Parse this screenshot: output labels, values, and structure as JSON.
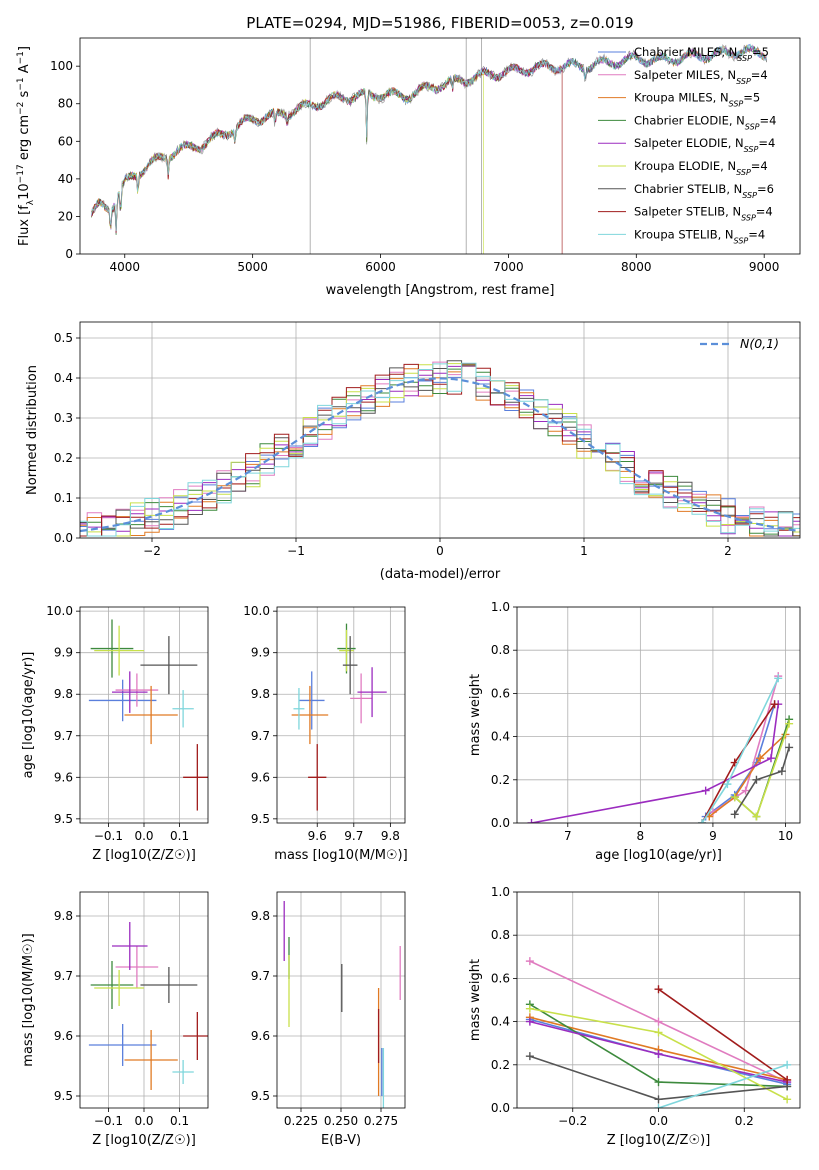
{
  "figure": {
    "title": "PLATE=0294, MJD=51986, FIBERID=0053, z=0.019"
  },
  "colors": {
    "Chabrier MILES": "#5a7fdc",
    "Salpeter MILES": "#e07cc0",
    "Kroupa MILES": "#e07a24",
    "Chabrier ELODIE": "#3d8a3d",
    "Salpeter ELODIE": "#9b2cbf",
    "Kroupa ELODIE": "#c8e04a",
    "Chabrier STELIB": "#555555",
    "Salpeter STELIB": "#a11c1c",
    "Kroupa STELIB": "#7fd6dc"
  },
  "chart_data": [
    {
      "id": "spectrum",
      "type": "line",
      "title": "PLATE=0294, MJD=51986, FIBERID=0053, z=0.019",
      "xlabel": "wavelength [Angstrom, rest frame]",
      "ylabel": "Flux [f_λ 10^-17 erg cm^-2 s^-1 A^-1]",
      "xlim": [
        3650,
        9280
      ],
      "ylim": [
        0,
        115
      ],
      "xticks": [
        4000,
        5000,
        6000,
        7000,
        8000,
        9000
      ],
      "yticks": [
        0,
        20,
        40,
        60,
        80,
        100
      ],
      "legend": "top-right",
      "legend_labels": [
        "Chabrier MILES, N_SSP=5",
        "Salpeter MILES, N_SSP=4",
        "Kroupa MILES, N_SSP=5",
        "Chabrier ELODIE, N_SSP=4",
        "Salpeter ELODIE, N_SSP=4",
        "Kroupa ELODIE, N_SSP=4",
        "Chabrier STELIB, N_SSP=6",
        "Salpeter STELIB, N_SSP=4",
        "Kroupa STELIB, N_SSP=4"
      ],
      "continuum": {
        "x": [
          3740,
          3800,
          3900,
          4000,
          4200,
          4400,
          4600,
          4800,
          5000,
          5200,
          5400,
          5600,
          5800,
          6000,
          6200,
          6400,
          6600,
          6800,
          7000,
          7200,
          7400,
          7600,
          7800,
          8000,
          8200,
          8400,
          8600,
          8800,
          9000,
          9020
        ],
        "y": [
          20,
          26,
          25,
          38,
          48,
          55,
          58,
          65,
          72,
          74,
          78,
          82,
          84,
          85,
          84,
          89,
          92,
          95,
          97,
          99,
          100,
          100,
          102,
          104,
          103,
          105,
          106,
          108,
          107,
          106
        ]
      },
      "grey_spikes_x": [
        5450,
        6670,
        6790
      ],
      "model_endpoints": [
        {
          "model": "Kroupa ELODIE",
          "end_x": 6800
        },
        {
          "model": "Salpeter STELIB",
          "end_x": 7420
        }
      ]
    },
    {
      "id": "residuals",
      "type": "line",
      "xlabel": "(data-model)/error",
      "ylabel": "Normed distribution",
      "xlim": [
        -2.5,
        2.5
      ],
      "ylim": [
        0,
        0.54
      ],
      "xticks": [
        -2,
        -1,
        0,
        1,
        2
      ],
      "yticks": [
        0.0,
        0.1,
        0.2,
        0.3,
        0.4,
        0.5
      ],
      "legend": "top-right",
      "gaussian_label": "N(0,1)"
    },
    {
      "id": "age_vs_Z",
      "type": "scatter",
      "xlabel": "Z [log10(Z/Z☉)]",
      "ylabel": "age  [log10(age/yr)]",
      "xlim": [
        -0.18,
        0.18
      ],
      "ylim": [
        9.49,
        10.01
      ],
      "xticks": [
        -0.1,
        0.0,
        0.1
      ],
      "yticks": [
        9.5,
        9.6,
        9.7,
        9.8,
        9.9,
        10.0
      ],
      "points": [
        {
          "model": "Chabrier MILES",
          "x": -0.06,
          "y": 9.785,
          "xerr": 0.095,
          "yerr": 0.05
        },
        {
          "model": "Salpeter MILES",
          "x": -0.02,
          "y": 9.81,
          "xerr": 0.06,
          "yerr": 0.04
        },
        {
          "model": "Kroupa MILES",
          "x": 0.02,
          "y": 9.75,
          "xerr": 0.075,
          "yerr": 0.07
        },
        {
          "model": "Chabrier ELODIE",
          "x": -0.09,
          "y": 9.91,
          "xerr": 0.06,
          "yerr": 0.07
        },
        {
          "model": "Salpeter ELODIE",
          "x": -0.04,
          "y": 9.805,
          "xerr": 0.05,
          "yerr": 0.05
        },
        {
          "model": "Kroupa ELODIE",
          "x": -0.07,
          "y": 9.905,
          "xerr": 0.07,
          "yerr": 0.06
        },
        {
          "model": "Chabrier STELIB",
          "x": 0.07,
          "y": 9.87,
          "xerr": 0.08,
          "yerr": 0.07
        },
        {
          "model": "Salpeter STELIB",
          "x": 0.15,
          "y": 9.6,
          "xerr": 0.04,
          "yerr": 0.08
        },
        {
          "model": "Kroupa STELIB",
          "x": 0.11,
          "y": 9.765,
          "xerr": 0.03,
          "yerr": 0.045
        }
      ]
    },
    {
      "id": "age_vs_mass",
      "type": "scatter",
      "xlabel": "mass [log10(M/M☉)]",
      "ylabel": "",
      "xlim": [
        9.49,
        9.84
      ],
      "ylim": [
        9.49,
        10.01
      ],
      "xticks": [
        9.6,
        9.7,
        9.8
      ],
      "yticks": [
        9.5,
        9.6,
        9.7,
        9.8,
        9.9,
        10.0
      ],
      "points": [
        {
          "model": "Chabrier MILES",
          "x": 9.585,
          "y": 9.785,
          "xerr": 0.035,
          "yerr": 0.07
        },
        {
          "model": "Salpeter MILES",
          "x": 9.72,
          "y": 9.79,
          "xerr": 0.03,
          "yerr": 0.06
        },
        {
          "model": "Kroupa MILES",
          "x": 9.58,
          "y": 9.75,
          "xerr": 0.05,
          "yerr": 0.07
        },
        {
          "model": "Chabrier ELODIE",
          "x": 9.68,
          "y": 9.91,
          "xerr": 0.025,
          "yerr": 0.06
        },
        {
          "model": "Salpeter ELODIE",
          "x": 9.75,
          "y": 9.805,
          "xerr": 0.04,
          "yerr": 0.06
        },
        {
          "model": "Kroupa ELODIE",
          "x": 9.68,
          "y": 9.905,
          "xerr": 0.02,
          "yerr": 0.05
        },
        {
          "model": "Chabrier STELIB",
          "x": 9.69,
          "y": 9.87,
          "xerr": 0.02,
          "yerr": 0.07
        },
        {
          "model": "Salpeter STELIB",
          "x": 9.6,
          "y": 9.6,
          "xerr": 0.025,
          "yerr": 0.08
        },
        {
          "model": "Kroupa STELIB",
          "x": 9.55,
          "y": 9.765,
          "xerr": 0.015,
          "yerr": 0.05
        }
      ]
    },
    {
      "id": "mass_weight_vs_age",
      "type": "line",
      "xlabel": "age  [log10(age/yr)]",
      "ylabel": "mass weight",
      "xlim": [
        6.3,
        10.2
      ],
      "ylim": [
        0,
        1.0
      ],
      "xticks": [
        7,
        8,
        9,
        10
      ],
      "yticks": [
        0.0,
        0.2,
        0.4,
        0.6,
        0.8,
        1.0
      ],
      "series": [
        {
          "model": "Chabrier MILES",
          "x": [
            8.9,
            9.3,
            9.6,
            9.85
          ],
          "y": [
            0.03,
            0.13,
            0.28,
            0.55
          ]
        },
        {
          "model": "Salpeter MILES",
          "x": [
            9.0,
            9.45,
            9.9
          ],
          "y": [
            0.05,
            0.15,
            0.68
          ]
        },
        {
          "model": "Kroupa MILES",
          "x": [
            8.95,
            9.3,
            9.65,
            10.0
          ],
          "y": [
            0.03,
            0.12,
            0.3,
            0.41
          ]
        },
        {
          "model": "Chabrier ELODIE",
          "x": [
            9.3,
            9.6,
            10.05
          ],
          "y": [
            0.12,
            0.03,
            0.48
          ]
        },
        {
          "model": "Salpeter ELODIE",
          "x": [
            6.5,
            8.9,
            9.8,
            9.9
          ],
          "y": [
            0.0,
            0.15,
            0.3,
            0.55
          ]
        },
        {
          "model": "Kroupa ELODIE",
          "x": [
            9.3,
            9.6,
            10.05
          ],
          "y": [
            0.12,
            0.03,
            0.46
          ]
        },
        {
          "model": "Chabrier STELIB",
          "x": [
            9.3,
            9.6,
            9.95,
            10.05
          ],
          "y": [
            0.04,
            0.2,
            0.24,
            0.35
          ]
        },
        {
          "model": "Salpeter STELIB",
          "x": [
            8.85,
            9.3,
            9.85
          ],
          "y": [
            0.0,
            0.28,
            0.55
          ]
        },
        {
          "model": "Kroupa STELIB",
          "x": [
            8.85,
            9.2,
            9.9
          ],
          "y": [
            0.0,
            0.18,
            0.67
          ]
        }
      ]
    },
    {
      "id": "mass_vs_Z",
      "type": "scatter",
      "xlabel": "Z [log10(Z/Z☉)]",
      "ylabel": "mass [log10(M/M☉)]",
      "xlim": [
        -0.18,
        0.18
      ],
      "ylim": [
        9.48,
        9.84
      ],
      "xticks": [
        -0.1,
        0.0,
        0.1
      ],
      "yticks": [
        9.5,
        9.6,
        9.7,
        9.8
      ],
      "points": [
        {
          "model": "Chabrier MILES",
          "x": -0.06,
          "y": 9.585,
          "xerr": 0.095,
          "yerr": 0.035
        },
        {
          "model": "Salpeter MILES",
          "x": -0.02,
          "y": 9.715,
          "xerr": 0.06,
          "yerr": 0.035
        },
        {
          "model": "Kroupa MILES",
          "x": 0.02,
          "y": 9.56,
          "xerr": 0.075,
          "yerr": 0.05
        },
        {
          "model": "Chabrier ELODIE",
          "x": -0.09,
          "y": 9.685,
          "xerr": 0.06,
          "yerr": 0.04
        },
        {
          "model": "Salpeter ELODIE",
          "x": -0.04,
          "y": 9.75,
          "xerr": 0.05,
          "yerr": 0.04
        },
        {
          "model": "Kroupa ELODIE",
          "x": -0.07,
          "y": 9.68,
          "xerr": 0.07,
          "yerr": 0.03
        },
        {
          "model": "Chabrier STELIB",
          "x": 0.07,
          "y": 9.685,
          "xerr": 0.08,
          "yerr": 0.03
        },
        {
          "model": "Salpeter STELIB",
          "x": 0.15,
          "y": 9.6,
          "xerr": 0.04,
          "yerr": 0.04
        },
        {
          "model": "Kroupa STELIB",
          "x": 0.11,
          "y": 9.54,
          "xerr": 0.03,
          "yerr": 0.02
        }
      ]
    },
    {
      "id": "mass_vs_EBV",
      "type": "scatter",
      "xlabel": "E(B-V)",
      "ylabel": "",
      "xlim": [
        0.21,
        0.29
      ],
      "ylim": [
        9.48,
        9.84
      ],
      "xticks": [
        0.225,
        0.25,
        0.275
      ],
      "yticks": [
        9.5,
        9.6,
        9.7,
        9.8
      ],
      "points": [
        {
          "model": "Chabrier MILES",
          "x": 0.2755,
          "y": 9.54,
          "yerr": 0.04
        },
        {
          "model": "Salpeter MILES",
          "x": 0.287,
          "y": 9.705,
          "yerr": 0.045
        },
        {
          "model": "Kroupa MILES",
          "x": 0.2735,
          "y": 9.59,
          "yerr": 0.09
        },
        {
          "model": "Chabrier ELODIE",
          "x": 0.2175,
          "y": 9.73,
          "yerr": 0.035
        },
        {
          "model": "Salpeter ELODIE",
          "x": 0.2145,
          "y": 9.775,
          "yerr": 0.05
        },
        {
          "model": "Kroupa ELODIE",
          "x": 0.2175,
          "y": 9.675,
          "yerr": 0.06
        },
        {
          "model": "Chabrier STELIB",
          "x": 0.2505,
          "y": 9.68,
          "yerr": 0.04
        },
        {
          "model": "Salpeter STELIB",
          "x": 0.2735,
          "y": 9.6,
          "yerr": 0.045
        },
        {
          "model": "Kroupa STELIB",
          "x": 0.2765,
          "y": 9.53,
          "yerr": 0.05
        }
      ]
    },
    {
      "id": "mass_weight_vs_Z",
      "type": "line",
      "xlabel": "Z [log10(Z/Z☉)]",
      "ylabel": "mass weight",
      "xlim": [
        -0.33,
        0.33
      ],
      "ylim": [
        0,
        1.0
      ],
      "xticks": [
        -0.2,
        0.0,
        0.2
      ],
      "yticks": [
        0.0,
        0.2,
        0.4,
        0.6,
        0.8,
        1.0
      ],
      "series": [
        {
          "model": "Chabrier MILES",
          "x": [
            -0.3,
            0.0,
            0.3
          ],
          "y": [
            0.41,
            0.25,
            0.11
          ]
        },
        {
          "model": "Salpeter MILES",
          "x": [
            -0.3,
            0.0,
            0.3
          ],
          "y": [
            0.68,
            0.4,
            0.12
          ]
        },
        {
          "model": "Kroupa MILES",
          "x": [
            -0.3,
            0.0,
            0.3
          ],
          "y": [
            0.42,
            0.27,
            0.13
          ]
        },
        {
          "model": "Chabrier ELODIE",
          "x": [
            -0.3,
            0.0,
            0.3
          ],
          "y": [
            0.48,
            0.12,
            0.1
          ]
        },
        {
          "model": "Salpeter ELODIE",
          "x": [
            -0.3,
            0.0,
            0.3
          ],
          "y": [
            0.4,
            0.25,
            0.12
          ]
        },
        {
          "model": "Kroupa ELODIE",
          "x": [
            -0.3,
            0.0,
            0.3
          ],
          "y": [
            0.46,
            0.35,
            0.04
          ]
        },
        {
          "model": "Chabrier STELIB",
          "x": [
            -0.3,
            0.0,
            0.3
          ],
          "y": [
            0.24,
            0.04,
            0.1
          ]
        },
        {
          "model": "Salpeter STELIB",
          "x": [
            0.0,
            0.3
          ],
          "y": [
            0.55,
            0.13
          ]
        },
        {
          "model": "Kroupa STELIB",
          "x": [
            0.0,
            0.3
          ],
          "y": [
            0.0,
            0.2
          ]
        }
      ]
    }
  ]
}
